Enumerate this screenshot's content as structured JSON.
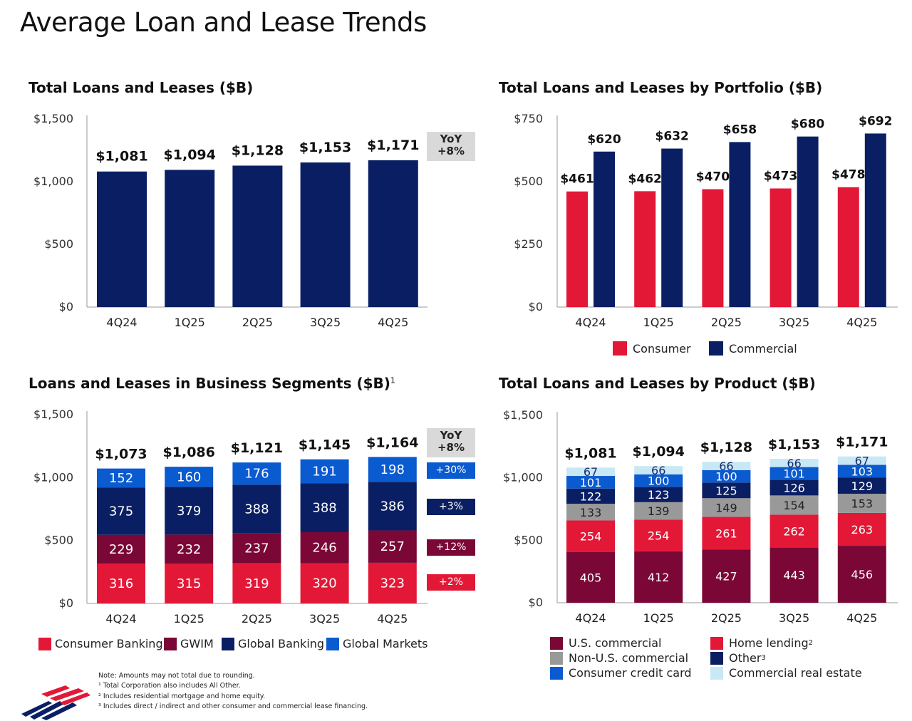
{
  "page_title": "Average Loan and Lease Trends",
  "colors": {
    "navy": "#0a1f63",
    "red": "#e31837",
    "maroon": "#7a0735",
    "blue": "#0a5ad0",
    "gray": "#999999",
    "light_blue": "#c9e8f5",
    "yoy_box": "#d9d9d9"
  },
  "chart_data": [
    {
      "id": "total",
      "type": "bar",
      "title": "Total Loans and Leases ($B)",
      "categories": [
        "4Q24",
        "1Q25",
        "2Q25",
        "3Q25",
        "4Q25"
      ],
      "values": [
        1081,
        1094,
        1128,
        1153,
        1171
      ],
      "value_labels": [
        "$1,081",
        "$1,094",
        "$1,128",
        "$1,153",
        "$1,171"
      ],
      "ylim": [
        0,
        1500
      ],
      "yticks": [
        "$0",
        "$500",
        "$1,000",
        "$1,500"
      ],
      "yoy": {
        "label": "YoY",
        "value": "+8%"
      }
    },
    {
      "id": "portfolio",
      "type": "bar",
      "title": "Total Loans and Leases by Portfolio ($B)",
      "categories": [
        "4Q24",
        "1Q25",
        "2Q25",
        "3Q25",
        "4Q25"
      ],
      "series": [
        {
          "name": "Consumer",
          "values": [
            461,
            462,
            470,
            473,
            478
          ],
          "labels": [
            "$461",
            "$462",
            "$470",
            "$473",
            "$478"
          ],
          "color": "#e31837"
        },
        {
          "name": "Commercial",
          "values": [
            620,
            632,
            658,
            680,
            692
          ],
          "labels": [
            "$620",
            "$632",
            "$658",
            "$680",
            "$692"
          ],
          "color": "#0a1f63"
        }
      ],
      "ylim": [
        0,
        750
      ],
      "yticks": [
        "$0",
        "$250",
        "$500",
        "$750"
      ],
      "legend": "bottom"
    },
    {
      "id": "segments",
      "type": "bar",
      "stacked": true,
      "title": "Loans and Leases in Business Segments ($B)",
      "title_sup": "1",
      "categories": [
        "4Q24",
        "1Q25",
        "2Q25",
        "3Q25",
        "4Q25"
      ],
      "series": [
        {
          "name": "Consumer Banking",
          "values": [
            316,
            315,
            319,
            320,
            323
          ],
          "color": "#e31837",
          "yoy": "+2%"
        },
        {
          "name": "GWIM",
          "values": [
            229,
            232,
            237,
            246,
            257
          ],
          "color": "#7a0735",
          "yoy": "+12%"
        },
        {
          "name": "Global Banking",
          "values": [
            375,
            379,
            388,
            388,
            386
          ],
          "color": "#0a1f63",
          "yoy": "+3%"
        },
        {
          "name": "Global Markets",
          "values": [
            152,
            160,
            176,
            191,
            198
          ],
          "color": "#0a5ad0",
          "yoy": "+30%"
        }
      ],
      "totals": [
        "$1,073",
        "$1,086",
        "$1,121",
        "$1,145",
        "$1,164"
      ],
      "ylim": [
        0,
        1500
      ],
      "yticks": [
        "$0",
        "$500",
        "$1,000",
        "$1,500"
      ],
      "yoy": {
        "label": "YoY",
        "value": "+8%"
      },
      "legend": "bottom"
    },
    {
      "id": "product",
      "type": "bar",
      "stacked": true,
      "title": "Total Loans and Leases by Product ($B)",
      "categories": [
        "4Q24",
        "1Q25",
        "2Q25",
        "3Q25",
        "4Q25"
      ],
      "series": [
        {
          "name": "U.S. commercial",
          "values": [
            405,
            412,
            427,
            443,
            456
          ],
          "color": "#7a0735"
        },
        {
          "name": "Home lending",
          "sup": "2",
          "values": [
            254,
            254,
            261,
            262,
            263
          ],
          "color": "#e31837"
        },
        {
          "name": "Non-U.S. commercial",
          "values": [
            133,
            139,
            149,
            154,
            153
          ],
          "color": "#999999"
        },
        {
          "name": "Other",
          "sup": "3",
          "values": [
            122,
            123,
            125,
            126,
            129
          ],
          "color": "#0a1f63"
        },
        {
          "name": "Consumer credit card",
          "values": [
            101,
            100,
            100,
            101,
            103
          ],
          "color": "#0a5ad0"
        },
        {
          "name": "Commercial real estate",
          "values": [
            67,
            66,
            66,
            66,
            67
          ],
          "color": "#c9e8f5"
        }
      ],
      "totals": [
        "$1,081",
        "$1,094",
        "$1,128",
        "$1,153",
        "$1,171"
      ],
      "ylim": [
        0,
        1500
      ],
      "yticks": [
        "$0",
        "$500",
        "$1,000",
        "$1,500"
      ],
      "legend": "bottom"
    }
  ],
  "notes": [
    "Note: Amounts may not total due to rounding.",
    "¹ Total Corporation also includes All Other.",
    "² Includes residential mortgage and home equity.",
    "³ Includes direct / indirect and other consumer and commercial lease financing."
  ],
  "logo": "bank-flag-logo"
}
